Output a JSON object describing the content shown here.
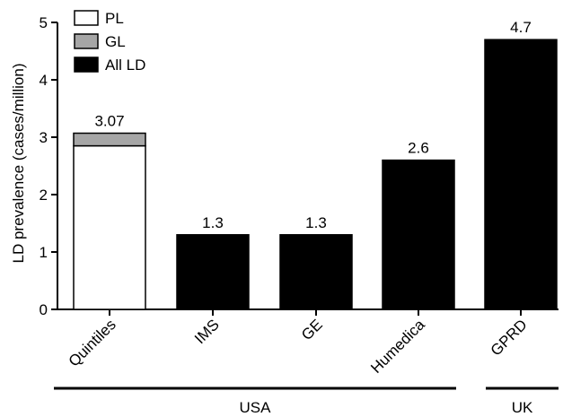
{
  "chart_data": {
    "type": "bar",
    "stacked": true,
    "ylabel": "LD prevalence (cases/million)",
    "ylim": [
      0,
      5
    ],
    "yticks": [
      "0",
      "1",
      "2",
      "3",
      "4",
      "5"
    ],
    "categories": [
      "Quintiles",
      "IMS",
      "GE",
      "Humedica",
      "GPRD"
    ],
    "series": [
      {
        "name": "PL",
        "color": "#ffffff",
        "values": [
          2.85,
          0,
          0,
          0,
          0
        ]
      },
      {
        "name": "GL",
        "color": "#a6a6a6",
        "values": [
          0.22,
          0,
          0,
          0,
          0
        ]
      },
      {
        "name": "All LD",
        "color": "#000000",
        "values": [
          0,
          1.3,
          1.3,
          2.6,
          4.7
        ]
      }
    ],
    "data_labels": [
      "3.07",
      "1.3",
      "1.3",
      "2.6",
      "4.7"
    ],
    "legend_position": "top-left",
    "groups": [
      {
        "label": "USA",
        "categories": [
          "Quintiles",
          "IMS",
          "GE",
          "Humedica"
        ]
      },
      {
        "label": "UK",
        "categories": [
          "GPRD"
        ]
      }
    ]
  }
}
